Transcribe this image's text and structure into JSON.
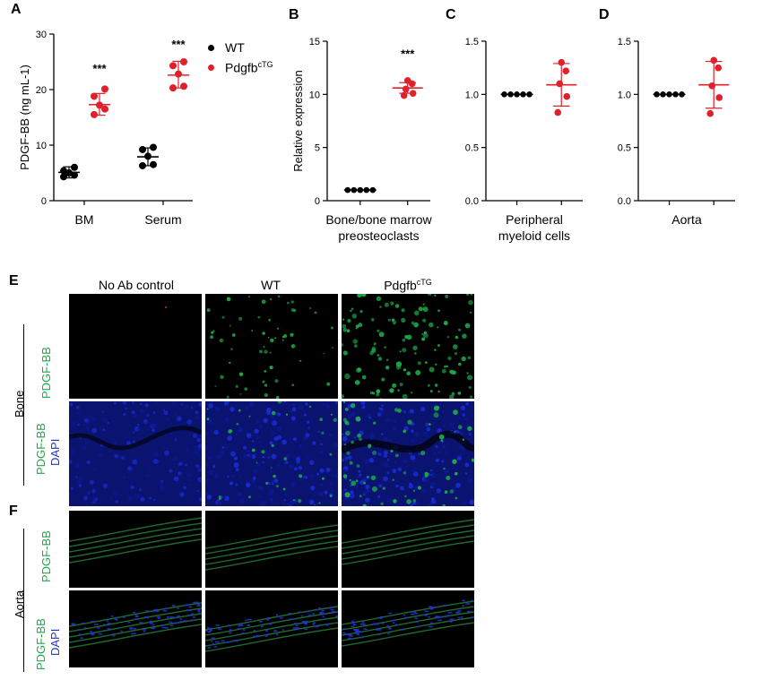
{
  "panels": {
    "A": "A",
    "B": "B",
    "C": "C",
    "D": "D",
    "E": "E",
    "F": "F"
  },
  "legend": {
    "wt": "WT",
    "tg_base": "Pdgfb",
    "tg_sup": "cTG"
  },
  "colors": {
    "wt": "#000000",
    "tg": "#e0202a",
    "pdgf_stain": "#1fa84a",
    "dapi_stain": "#2233c8"
  },
  "chart_data": [
    {
      "id": "A",
      "type": "scatter",
      "ylabel": "PDGF-BB (ng mL-1)",
      "ylim": [
        0,
        30
      ],
      "yticks": [
        0,
        10,
        20,
        30
      ],
      "categories": [
        "BM",
        "Serum"
      ],
      "series": [
        {
          "name": "WT",
          "groups": [
            {
              "category": "BM",
              "points": [
                4.3,
                4.6,
                5.0,
                5.4,
                6.0
              ],
              "mean": 5.1,
              "sd_low": 4.1,
              "sd_high": 6.1
            },
            {
              "category": "Serum",
              "points": [
                6.3,
                6.5,
                8.0,
                9.2,
                9.6
              ],
              "mean": 7.9,
              "sd_low": 6.3,
              "sd_high": 9.5
            }
          ]
        },
        {
          "name": "PdgfbcTG",
          "groups": [
            {
              "category": "BM",
              "points": [
                15.5,
                16.5,
                17.2,
                18.8,
                20.1
              ],
              "mean": 17.3,
              "sd_low": 15.4,
              "sd_high": 19.3
            },
            {
              "category": "Serum",
              "points": [
                20.3,
                20.6,
                22.8,
                24.3,
                25.0
              ],
              "mean": 22.6,
              "sd_low": 20.3,
              "sd_high": 25.1
            }
          ]
        }
      ],
      "annotations": [
        "***",
        "***"
      ]
    },
    {
      "id": "B",
      "type": "scatter",
      "ylabel": "Relative expression",
      "ylim": [
        0,
        15
      ],
      "yticks": [
        0,
        5,
        10,
        15
      ],
      "xlabel": "Bone/bone marrow preosteoclasts",
      "series": [
        {
          "name": "WT",
          "points": [
            1,
            1,
            1,
            1,
            1
          ],
          "mean": 1
        },
        {
          "name": "PdgfbcTG",
          "points": [
            9.9,
            10.1,
            10.5,
            11.0,
            11.3
          ],
          "mean": 10.6,
          "sd_low": 10.1,
          "sd_high": 11.1
        }
      ],
      "annotation": "***"
    },
    {
      "id": "C",
      "type": "scatter",
      "ylim": [
        0,
        1.5
      ],
      "yticks": [
        "0.0",
        "0.5",
        "1.0",
        "1.5"
      ],
      "xlabel": "Peripheral myeloid cells",
      "series": [
        {
          "name": "WT",
          "points": [
            1,
            1,
            1,
            1,
            1
          ],
          "mean": 1
        },
        {
          "name": "PdgfbcTG",
          "points": [
            0.83,
            0.98,
            1.1,
            1.22,
            1.3
          ],
          "mean": 1.09,
          "sd_low": 0.89,
          "sd_high": 1.29
        }
      ]
    },
    {
      "id": "D",
      "type": "scatter",
      "ylim": [
        0,
        1.5
      ],
      "yticks": [
        "0.0",
        "0.5",
        "1.0",
        "1.5"
      ],
      "xlabel": "Aorta",
      "series": [
        {
          "name": "WT",
          "points": [
            1,
            1,
            1,
            1,
            1
          ],
          "mean": 1
        },
        {
          "name": "PdgfbcTG",
          "points": [
            0.82,
            0.97,
            1.08,
            1.25,
            1.32
          ],
          "mean": 1.09,
          "sd_low": 0.87,
          "sd_high": 1.31
        }
      ]
    }
  ],
  "micro": {
    "col_no_ab": "No Ab control",
    "col_wt": "WT",
    "col_tg_base": "Pdgfb",
    "col_tg_sup": "cTG",
    "bone": "Bone",
    "aorta": "Aorta",
    "pdgf": "PDGF-BB",
    "dapi": "DAPI"
  }
}
